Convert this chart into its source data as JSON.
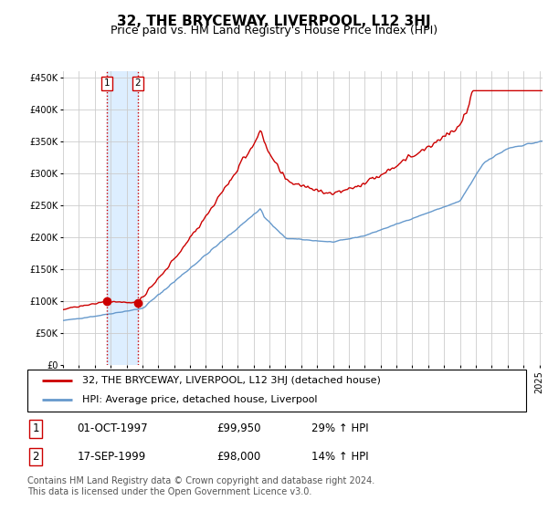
{
  "title": "32, THE BRYCEWAY, LIVERPOOL, L12 3HJ",
  "subtitle": "Price paid vs. HM Land Registry's House Price Index (HPI)",
  "red_label": "32, THE BRYCEWAY, LIVERPOOL, L12 3HJ (detached house)",
  "blue_label": "HPI: Average price, detached house, Liverpool",
  "ylim": [
    0,
    460000
  ],
  "yticks": [
    0,
    50000,
    100000,
    150000,
    200000,
    250000,
    300000,
    350000,
    400000,
    450000
  ],
  "ytick_labels": [
    "£0",
    "£50K",
    "£100K",
    "£150K",
    "£200K",
    "£250K",
    "£300K",
    "£350K",
    "£400K",
    "£450K"
  ],
  "sale1_date": "01-OCT-1997",
  "sale1_price": 99950,
  "sale1_hpi": "29% ↑ HPI",
  "sale2_date": "17-SEP-1999",
  "sale2_price": 98000,
  "sale2_hpi": "14% ↑ HPI",
  "sale1_x": 1997.75,
  "sale2_x": 1999.71,
  "red_color": "#cc0000",
  "blue_color": "#6699cc",
  "shade_color": "#ddeeff",
  "vline_color": "#cc0000",
  "grid_color": "#cccccc",
  "background_color": "#ffffff",
  "footnote": "Contains HM Land Registry data © Crown copyright and database right 2024.\nThis data is licensed under the Open Government Licence v3.0.",
  "title_fontsize": 11,
  "subtitle_fontsize": 9,
  "tick_fontsize": 7,
  "legend_fontsize": 8,
  "table_fontsize": 8.5,
  "footnote_fontsize": 7
}
